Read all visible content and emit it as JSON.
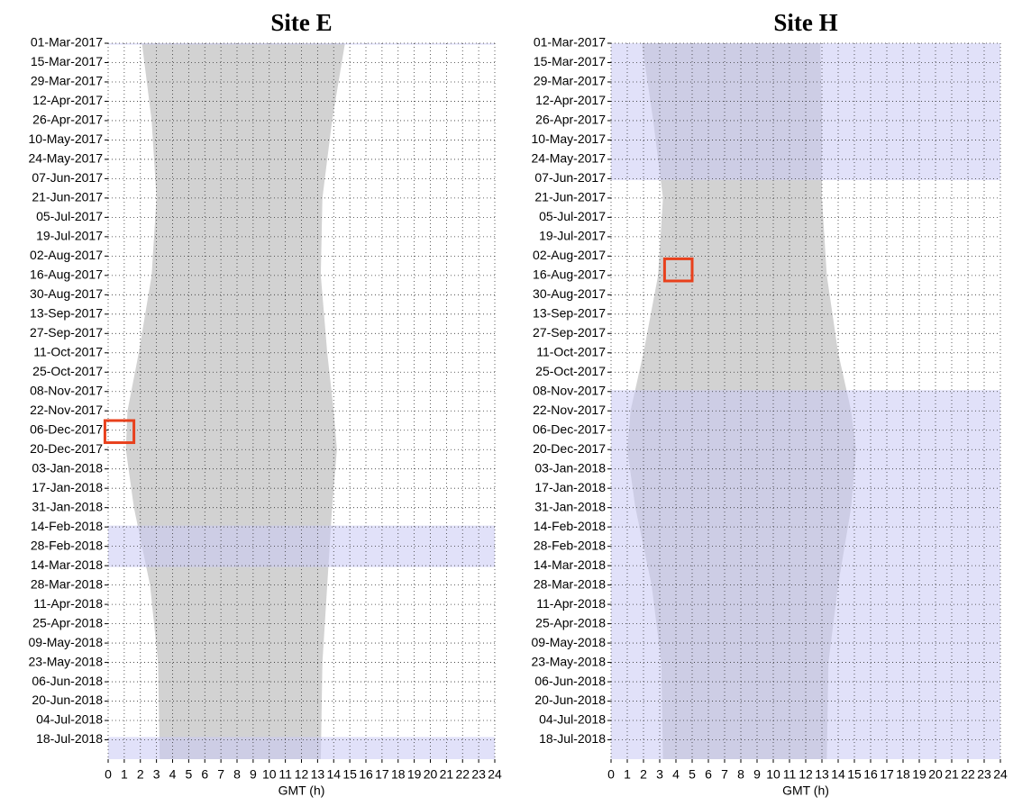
{
  "chart_data": [
    {
      "type": "range",
      "title": "Site E",
      "xlabel": "GMT (h)",
      "xlim": [
        0,
        24
      ],
      "xticks": [
        0,
        1,
        2,
        3,
        4,
        5,
        6,
        7,
        8,
        9,
        10,
        11,
        12,
        13,
        14,
        15,
        16,
        17,
        18,
        19,
        20,
        21,
        22,
        23,
        24
      ],
      "ylim": [
        "01-Mar-2017",
        "01-Aug-2018"
      ],
      "yticks": [
        "01-Mar-2017",
        "15-Mar-2017",
        "29-Mar-2017",
        "12-Apr-2017",
        "26-Apr-2017",
        "10-May-2017",
        "24-May-2017",
        "07-Jun-2017",
        "21-Jun-2017",
        "05-Jul-2017",
        "19-Jul-2017",
        "02-Aug-2017",
        "16-Aug-2017",
        "30-Aug-2017",
        "13-Sep-2017",
        "27-Sep-2017",
        "11-Oct-2017",
        "25-Oct-2017",
        "08-Nov-2017",
        "22-Nov-2017",
        "06-Dec-2017",
        "20-Dec-2017",
        "03-Jan-2018",
        "17-Jan-2018",
        "31-Jan-2018",
        "14-Feb-2018",
        "28-Feb-2018",
        "14-Mar-2018",
        "28-Mar-2018",
        "11-Apr-2018",
        "25-Apr-2018",
        "09-May-2018",
        "23-May-2018",
        "06-Jun-2018",
        "20-Jun-2018",
        "04-Jul-2018",
        "18-Jul-2018"
      ],
      "grid": true,
      "color": "#d2d2d2",
      "band_color": "#c8c8f4",
      "highlight_color": "#e8401c",
      "daylight": {
        "dates": [
          "01-Mar-2017",
          "26-Apr-2017",
          "21-Jun-2017",
          "16-Aug-2017",
          "11-Oct-2017",
          "22-Nov-2017",
          "20-Dec-2017",
          "31-Jan-2018",
          "28-Mar-2018",
          "23-May-2018",
          "01-Aug-2018"
        ],
        "start": [
          2.1,
          2.7,
          3.0,
          2.7,
          1.9,
          1.2,
          1.1,
          1.6,
          2.6,
          3.1,
          3.2
        ],
        "end": [
          14.7,
          13.9,
          13.3,
          13.2,
          13.6,
          14.0,
          14.2,
          13.9,
          13.6,
          13.3,
          13.2
        ]
      },
      "bands": [
        [
          "01-Mar-2017",
          "02-Mar-2017"
        ],
        [
          "13-Feb-2018",
          "15-Mar-2018"
        ],
        [
          "16-Jul-2018",
          "01-Aug-2018"
        ]
      ],
      "highlights": [
        {
          "x": [
            -0.2,
            1.6
          ],
          "y": [
            "29-Nov-2017",
            "15-Dec-2017"
          ]
        }
      ]
    },
    {
      "type": "range",
      "title": "Site H",
      "xlabel": "GMT (h)",
      "xlim": [
        0,
        24
      ],
      "xticks": [
        0,
        1,
        2,
        3,
        4,
        5,
        6,
        7,
        8,
        9,
        10,
        11,
        12,
        13,
        14,
        15,
        16,
        17,
        18,
        19,
        20,
        21,
        22,
        23,
        24
      ],
      "ylim": [
        "01-Mar-2017",
        "01-Aug-2018"
      ],
      "yticks": [
        "01-Mar-2017",
        "15-Mar-2017",
        "29-Mar-2017",
        "12-Apr-2017",
        "26-Apr-2017",
        "10-May-2017",
        "24-May-2017",
        "07-Jun-2017",
        "21-Jun-2017",
        "05-Jul-2017",
        "19-Jul-2017",
        "02-Aug-2017",
        "16-Aug-2017",
        "30-Aug-2017",
        "13-Sep-2017",
        "27-Sep-2017",
        "11-Oct-2017",
        "25-Oct-2017",
        "08-Nov-2017",
        "22-Nov-2017",
        "06-Dec-2017",
        "20-Dec-2017",
        "03-Jan-2018",
        "17-Jan-2018",
        "31-Jan-2018",
        "14-Feb-2018",
        "28-Feb-2018",
        "14-Mar-2018",
        "28-Mar-2018",
        "11-Apr-2018",
        "25-Apr-2018",
        "09-May-2018",
        "23-May-2018",
        "06-Jun-2018",
        "20-Jun-2018",
        "04-Jul-2018",
        "18-Jul-2018"
      ],
      "grid": true,
      "color": "#d2d2d2",
      "band_color": "#c8c8f4",
      "highlight_color": "#e8401c",
      "daylight": {
        "dates": [
          "01-Mar-2017",
          "26-Apr-2017",
          "21-Jun-2017",
          "16-Aug-2017",
          "11-Oct-2017",
          "22-Nov-2017",
          "20-Dec-2017",
          "31-Jan-2018",
          "28-Mar-2018",
          "23-May-2018",
          "01-Aug-2018"
        ],
        "start": [
          1.9,
          2.6,
          3.2,
          2.9,
          2.0,
          1.2,
          1.0,
          1.5,
          2.5,
          3.1,
          3.2
        ],
        "end": [
          12.9,
          13.0,
          13.0,
          13.3,
          14.0,
          14.8,
          15.1,
          14.8,
          14.0,
          13.4,
          13.3
        ]
      },
      "bands": [
        [
          "01-Mar-2017",
          "08-Jun-2017"
        ],
        [
          "07-Nov-2017",
          "01-Aug-2018"
        ]
      ],
      "highlights": [
        {
          "x": [
            3.3,
            5.0
          ],
          "y": [
            "04-Aug-2017",
            "20-Aug-2017"
          ]
        }
      ]
    }
  ]
}
